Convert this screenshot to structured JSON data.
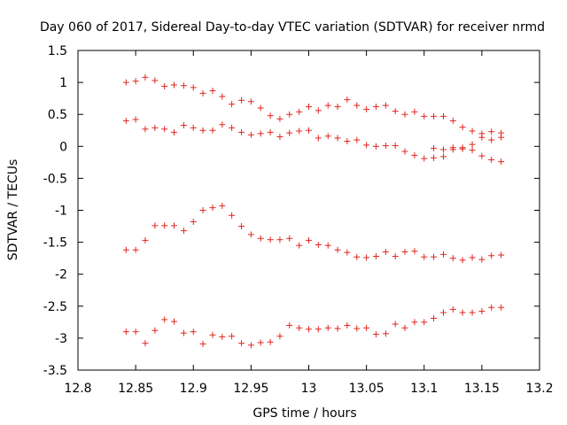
{
  "chart_data": {
    "type": "scatter",
    "title": "Day 060 of 2017, Sidereal Day-to-day VTEC variation (SDTVAR) for receiver nrmd",
    "xlabel": "GPS time / hours",
    "ylabel": "SDTVAR / TECUs",
    "xlim": [
      12.8,
      13.2
    ],
    "ylim": [
      -3.5,
      1.5
    ],
    "xticks": [
      12.8,
      12.85,
      12.9,
      12.95,
      13.0,
      13.05,
      13.1,
      13.15,
      13.2
    ],
    "xtick_labels": [
      "12.8",
      "12.85",
      "12.9",
      "12.95",
      "13",
      "13.05",
      "13.1",
      "13.15",
      "13.2"
    ],
    "yticks": [
      1.5,
      1.0,
      0.5,
      0.0,
      -0.5,
      -1.0,
      -1.5,
      -2.0,
      -2.5,
      -3.0,
      -3.5
    ],
    "ytick_labels": [
      "1.5",
      "1",
      "0.5",
      "0",
      "-0.5",
      "-1",
      "-1.5",
      "-2",
      "-2.5",
      "-3",
      "-3.5"
    ],
    "marker": "+",
    "marker_color": "#e0261f",
    "x": [
      12.8417,
      12.85,
      12.8583,
      12.8667,
      12.875,
      12.8833,
      12.8917,
      12.9,
      12.9083,
      12.9167,
      12.925,
      12.9333,
      12.9417,
      12.95,
      12.9583,
      12.9667,
      12.975,
      12.9833,
      12.9917,
      13.0,
      13.0083,
      13.0167,
      13.025,
      13.0333,
      13.0417,
      13.05,
      13.0583,
      13.0667,
      13.075,
      13.0833,
      13.0917,
      13.1,
      13.1083,
      13.1167,
      13.125,
      13.1333,
      13.1417,
      13.15,
      13.1583,
      13.1667
    ],
    "series": [
      {
        "name": "series-1",
        "values": [
          1.0,
          1.02,
          1.08,
          1.03,
          0.94,
          0.96,
          0.95,
          0.92,
          0.83,
          0.87,
          0.78,
          0.66,
          0.72,
          0.7,
          0.6,
          0.48,
          0.43,
          0.5,
          0.54,
          0.62,
          0.56,
          0.64,
          0.62,
          0.73,
          0.64,
          0.58,
          0.62,
          0.64,
          0.55,
          0.5,
          0.54,
          0.47,
          0.47,
          0.47,
          0.4,
          0.3,
          0.24,
          0.2,
          0.23,
          0.21
        ]
      },
      {
        "name": "series-2",
        "values": [
          0.4,
          0.42,
          0.27,
          0.29,
          0.27,
          0.22,
          0.33,
          0.29,
          0.25,
          0.25,
          0.34,
          0.29,
          0.22,
          0.18,
          0.2,
          0.22,
          0.15,
          0.21,
          0.24,
          0.25,
          0.13,
          0.16,
          0.13,
          0.08,
          0.1,
          0.02,
          0.0,
          0.01,
          0.01,
          -0.08,
          -0.14,
          -0.19,
          -0.18,
          -0.16,
          -0.05,
          -0.04,
          -0.06,
          -0.15,
          -0.21,
          -0.24
        ]
      },
      {
        "name": "series-3",
        "values": [
          -1.62,
          -1.62,
          -1.47,
          -1.24,
          -1.24,
          -1.24,
          -1.32,
          -1.18,
          -1.0,
          -0.96,
          -0.93,
          -1.08,
          -1.25,
          -1.38,
          -1.44,
          -1.46,
          -1.46,
          -1.44,
          -1.55,
          -1.47,
          -1.54,
          -1.55,
          -1.62,
          -1.66,
          -1.73,
          -1.74,
          -1.72,
          -1.65,
          -1.72,
          -1.65,
          -1.64,
          -1.73,
          -1.73,
          -1.69,
          -1.75,
          -1.78,
          -1.74,
          -1.77,
          -1.71,
          -1.7
        ]
      },
      {
        "name": "series-4",
        "values": [
          -2.9,
          -2.9,
          -3.08,
          -2.88,
          -2.71,
          -2.74,
          -2.92,
          -2.9,
          -3.09,
          -2.95,
          -2.98,
          -2.97,
          -3.08,
          -3.11,
          -3.07,
          -3.06,
          -2.97,
          -2.8,
          -2.84,
          -2.86,
          -2.86,
          -2.84,
          -2.85,
          -2.8,
          -2.85,
          -2.84,
          -2.94,
          -2.93,
          -2.78,
          -2.84,
          -2.75,
          -2.75,
          -2.69,
          -2.6,
          -2.55,
          -2.6,
          -2.6,
          -2.58,
          -2.52,
          -2.52
        ]
      },
      {
        "name": "series-5",
        "values": [
          null,
          null,
          null,
          null,
          null,
          null,
          null,
          null,
          null,
          null,
          null,
          null,
          null,
          null,
          null,
          null,
          null,
          null,
          null,
          null,
          null,
          null,
          null,
          null,
          null,
          null,
          null,
          null,
          null,
          null,
          null,
          null,
          -0.03,
          -0.05,
          -0.02,
          -0.02,
          0.03,
          0.14,
          0.1,
          0.14
        ]
      }
    ]
  }
}
